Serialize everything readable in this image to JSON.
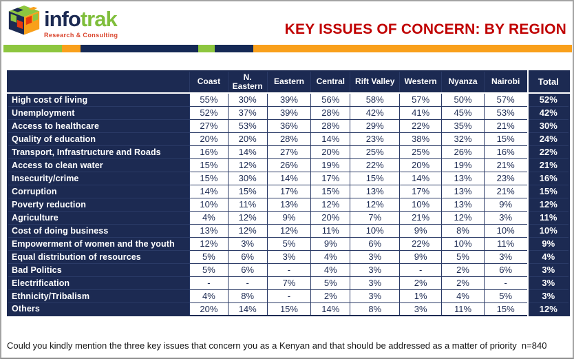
{
  "logo": {
    "brand_info": "info",
    "brand_trak": "trak",
    "tagline": "Research & Consulting"
  },
  "header": {
    "title": "KEY ISSUES OF CONCERN: BY REGION"
  },
  "colors": {
    "navy": "#1C2A52",
    "green": "#8DC63F",
    "orange": "#F9A01B",
    "title_red": "#C00000",
    "tagline_red": "#D9432B"
  },
  "chart_data": {
    "type": "table",
    "title": "KEY ISSUES OF CONCERN: BY REGION",
    "columns": [
      "Coast",
      "N. Eastern",
      "Eastern",
      "Central",
      "Rift Valley",
      "Western",
      "Nyanza",
      "Nairobi"
    ],
    "total_label": "Total",
    "rows": [
      {
        "label": "High cost of living",
        "values": [
          "55%",
          "30%",
          "39%",
          "56%",
          "58%",
          "57%",
          "50%",
          "57%"
        ],
        "total": "52%"
      },
      {
        "label": "Unemployment",
        "values": [
          "52%",
          "37%",
          "39%",
          "28%",
          "42%",
          "41%",
          "45%",
          "53%"
        ],
        "total": "42%"
      },
      {
        "label": "Access to healthcare",
        "values": [
          "27%",
          "53%",
          "36%",
          "28%",
          "29%",
          "22%",
          "35%",
          "21%"
        ],
        "total": "30%"
      },
      {
        "label": "Quality of education",
        "values": [
          "20%",
          "20%",
          "28%",
          "14%",
          "23%",
          "38%",
          "32%",
          "15%"
        ],
        "total": "24%"
      },
      {
        "label": "Transport, Infrastructure and Roads",
        "values": [
          "16%",
          "14%",
          "27%",
          "20%",
          "25%",
          "25%",
          "26%",
          "16%"
        ],
        "total": "22%"
      },
      {
        "label": "Access to clean water",
        "values": [
          "15%",
          "12%",
          "26%",
          "19%",
          "22%",
          "20%",
          "19%",
          "21%"
        ],
        "total": "21%"
      },
      {
        "label": "Insecurity/crime",
        "values": [
          "15%",
          "30%",
          "14%",
          "17%",
          "15%",
          "14%",
          "13%",
          "23%"
        ],
        "total": "16%"
      },
      {
        "label": "Corruption",
        "values": [
          "14%",
          "15%",
          "17%",
          "15%",
          "13%",
          "17%",
          "13%",
          "21%"
        ],
        "total": "15%"
      },
      {
        "label": "Poverty reduction",
        "values": [
          "10%",
          "11%",
          "13%",
          "12%",
          "12%",
          "10%",
          "13%",
          "9%"
        ],
        "total": "12%"
      },
      {
        "label": "Agriculture",
        "values": [
          "4%",
          "12%",
          "9%",
          "20%",
          "7%",
          "21%",
          "12%",
          "3%"
        ],
        "total": "11%"
      },
      {
        "label": "Cost of doing business",
        "values": [
          "13%",
          "12%",
          "12%",
          "11%",
          "10%",
          "9%",
          "8%",
          "10%"
        ],
        "total": "10%"
      },
      {
        "label": "Empowerment of women and the youth",
        "values": [
          "12%",
          "3%",
          "5%",
          "9%",
          "6%",
          "22%",
          "10%",
          "11%"
        ],
        "total": "9%"
      },
      {
        "label": "Equal distribution of resources",
        "values": [
          "5%",
          "6%",
          "3%",
          "4%",
          "3%",
          "9%",
          "5%",
          "3%"
        ],
        "total": "4%"
      },
      {
        "label": "Bad Politics",
        "values": [
          "5%",
          "6%",
          "-",
          "4%",
          "3%",
          "-",
          "2%",
          "6%"
        ],
        "total": "3%"
      },
      {
        "label": "Electrification",
        "values": [
          "-",
          "-",
          "7%",
          "5%",
          "3%",
          "2%",
          "2%",
          "-"
        ],
        "total": "3%"
      },
      {
        "label": "Ethnicity/Tribalism",
        "values": [
          "4%",
          "8%",
          "-",
          "2%",
          "3%",
          "1%",
          "4%",
          "5%"
        ],
        "total": "3%"
      },
      {
        "label": "Others",
        "values": [
          "20%",
          "14%",
          "15%",
          "14%",
          "8%",
          "3%",
          "11%",
          "15%"
        ],
        "total": "12%"
      }
    ],
    "note": "Could you kindly mention the three key issues that concern you as a Kenyan and that should be addressed as a matter of priority  n=840"
  }
}
